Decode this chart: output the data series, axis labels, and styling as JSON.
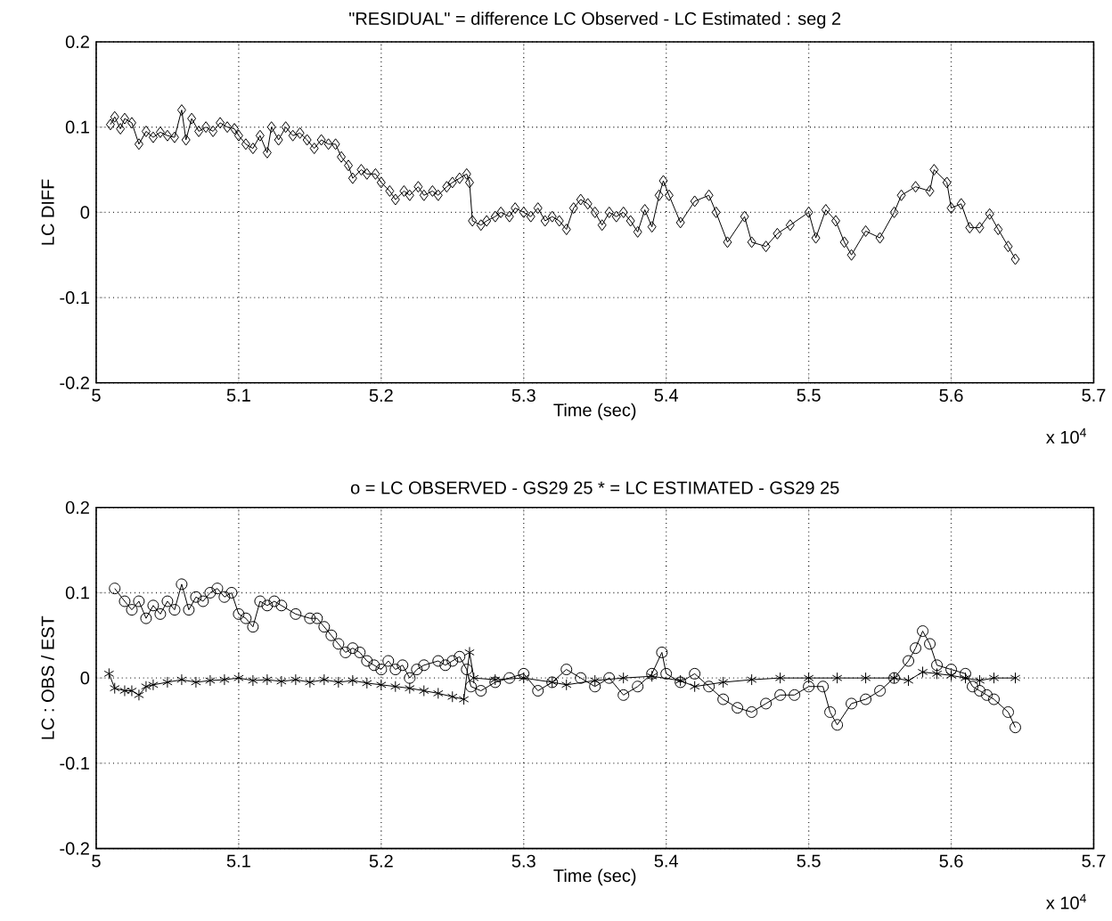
{
  "chart_data": [
    {
      "type": "line",
      "title": "\"RESIDUAL\" = difference  LC Observed - LC Estimated        : seg 2",
      "xlabel": "Time (sec)",
      "ylabel": "LC DIFF",
      "annotations": [
        "x 10$^{4}$"
      ],
      "xlim": [
        5,
        5.7
      ],
      "ylim": [
        -0.2,
        0.2
      ],
      "xticks": [
        5,
        5.1,
        5.2,
        5.3,
        5.4,
        5.5,
        5.6,
        5.7
      ],
      "yticks": [
        -0.2,
        -0.1,
        0,
        0.1,
        0.2
      ],
      "grid": true,
      "series": [
        {
          "color": "#000000",
          "marker": "diamond",
          "x": [
            5.01,
            5.013,
            5.017,
            5.02,
            5.025,
            5.03,
            5.035,
            5.04,
            5.045,
            5.05,
            5.055,
            5.06,
            5.063,
            5.067,
            5.072,
            5.077,
            5.082,
            5.087,
            5.092,
            5.097,
            5.1,
            5.105,
            5.11,
            5.115,
            5.12,
            5.123,
            5.128,
            5.133,
            5.138,
            5.143,
            5.148,
            5.153,
            5.158,
            5.163,
            5.168,
            5.172,
            5.177,
            5.18,
            5.186,
            5.19,
            5.196,
            5.2,
            5.206,
            5.21,
            5.216,
            5.22,
            5.226,
            5.23,
            5.236,
            5.24,
            5.246,
            5.25,
            5.255,
            5.26,
            5.262,
            5.264,
            5.27,
            5.274,
            5.28,
            5.284,
            5.29,
            5.294,
            5.3,
            5.305,
            5.31,
            5.315,
            5.32,
            5.325,
            5.33,
            5.335,
            5.34,
            5.345,
            5.35,
            5.355,
            5.36,
            5.365,
            5.37,
            5.375,
            5.38,
            5.385,
            5.39,
            5.395,
            5.398,
            5.402,
            5.41,
            5.42,
            5.43,
            5.435,
            5.443,
            5.455,
            5.46,
            5.47,
            5.478,
            5.487,
            5.5,
            5.505,
            5.512,
            5.519,
            5.525,
            5.53,
            5.54,
            5.55,
            5.56,
            5.565,
            5.575,
            5.585,
            5.588,
            5.597,
            5.6,
            5.607,
            5.613,
            5.62,
            5.627,
            5.633,
            5.64,
            5.645
          ],
          "values": [
            0.103,
            0.112,
            0.098,
            0.11,
            0.105,
            0.08,
            0.095,
            0.088,
            0.094,
            0.09,
            0.088,
            0.12,
            0.085,
            0.11,
            0.095,
            0.1,
            0.095,
            0.105,
            0.1,
            0.098,
            0.09,
            0.08,
            0.075,
            0.09,
            0.07,
            0.1,
            0.085,
            0.1,
            0.09,
            0.093,
            0.085,
            0.075,
            0.085,
            0.08,
            0.08,
            0.065,
            0.055,
            0.04,
            0.05,
            0.045,
            0.045,
            0.035,
            0.025,
            0.015,
            0.025,
            0.02,
            0.03,
            0.02,
            0.025,
            0.02,
            0.03,
            0.035,
            0.04,
            0.045,
            0.035,
            -0.01,
            -0.015,
            -0.01,
            -0.005,
            0.0,
            -0.005,
            0.005,
            0.0,
            -0.005,
            0.005,
            -0.01,
            -0.005,
            -0.01,
            -0.02,
            0.005,
            0.015,
            0.01,
            0.0,
            -0.015,
            0.0,
            -0.005,
            0.0,
            -0.01,
            -0.023,
            0.003,
            -0.017,
            0.02,
            0.037,
            0.02,
            -0.012,
            0.013,
            0.02,
            0.0,
            -0.035,
            -0.005,
            -0.035,
            -0.04,
            -0.025,
            -0.015,
            0.0,
            -0.03,
            0.003,
            -0.01,
            -0.035,
            -0.05,
            -0.022,
            -0.03,
            0.0,
            0.02,
            0.03,
            0.025,
            0.05,
            0.035,
            0.005,
            0.01,
            -0.018,
            -0.018,
            -0.002,
            -0.02,
            -0.04,
            -0.055
          ]
        }
      ]
    },
    {
      "type": "line",
      "title": "o = LC OBSERVED - GS29 25     * = LC ESTIMATED  - GS29 25",
      "xlabel": "Time (sec)",
      "ylabel": "LC : OBS / EST",
      "annotations": [
        "x 10$^{4}$"
      ],
      "xlim": [
        5,
        5.7
      ],
      "ylim": [
        -0.2,
        0.2
      ],
      "xticks": [
        5,
        5.1,
        5.2,
        5.3,
        5.4,
        5.5,
        5.6,
        5.7
      ],
      "yticks": [
        -0.2,
        -0.1,
        0,
        0.1,
        0.2
      ],
      "grid": true,
      "series": [
        {
          "color": "#000000",
          "marker": "circle",
          "x": [
            5.013,
            5.02,
            5.025,
            5.03,
            5.035,
            5.04,
            5.045,
            5.05,
            5.055,
            5.06,
            5.065,
            5.07,
            5.075,
            5.08,
            5.085,
            5.09,
            5.095,
            5.1,
            5.105,
            5.11,
            5.115,
            5.12,
            5.125,
            5.13,
            5.14,
            5.15,
            5.155,
            5.16,
            5.165,
            5.17,
            5.175,
            5.18,
            5.185,
            5.19,
            5.195,
            5.2,
            5.205,
            5.21,
            5.215,
            5.22,
            5.225,
            5.23,
            5.24,
            5.245,
            5.25,
            5.255,
            5.26,
            5.263,
            5.27,
            5.28,
            5.29,
            5.3,
            5.31,
            5.32,
            5.33,
            5.34,
            5.35,
            5.36,
            5.37,
            5.38,
            5.39,
            5.397,
            5.4,
            5.41,
            5.42,
            5.43,
            5.44,
            5.45,
            5.46,
            5.47,
            5.48,
            5.49,
            5.5,
            5.51,
            5.515,
            5.52,
            5.53,
            5.54,
            5.55,
            5.56,
            5.57,
            5.575,
            5.58,
            5.585,
            5.59,
            5.6,
            5.61,
            5.615,
            5.62,
            5.625,
            5.63,
            5.64,
            5.645
          ],
          "values": [
            0.105,
            0.09,
            0.08,
            0.09,
            0.07,
            0.085,
            0.075,
            0.09,
            0.08,
            0.11,
            0.08,
            0.095,
            0.09,
            0.1,
            0.105,
            0.095,
            0.1,
            0.075,
            0.07,
            0.06,
            0.09,
            0.085,
            0.09,
            0.085,
            0.075,
            0.07,
            0.07,
            0.06,
            0.05,
            0.04,
            0.03,
            0.035,
            0.03,
            0.02,
            0.015,
            0.01,
            0.02,
            0.01,
            0.015,
            0.0,
            0.01,
            0.015,
            0.02,
            0.015,
            0.02,
            0.025,
            0.01,
            -0.01,
            -0.015,
            -0.005,
            0.0,
            0.005,
            -0.015,
            -0.005,
            0.01,
            0.0,
            -0.01,
            0.0,
            -0.02,
            -0.01,
            0.005,
            0.03,
            0.005,
            -0.005,
            0.005,
            -0.01,
            -0.025,
            -0.035,
            -0.04,
            -0.03,
            -0.02,
            -0.02,
            -0.01,
            -0.01,
            -0.04,
            -0.055,
            -0.03,
            -0.025,
            -0.015,
            0.0,
            0.02,
            0.035,
            0.055,
            0.04,
            0.015,
            0.01,
            0.005,
            -0.01,
            -0.015,
            -0.02,
            -0.025,
            -0.04,
            -0.058
          ]
        },
        {
          "color": "#000000",
          "marker": "cross",
          "x": [
            5.009,
            5.013,
            5.02,
            5.025,
            5.03,
            5.035,
            5.04,
            5.05,
            5.06,
            5.07,
            5.08,
            5.09,
            5.1,
            5.11,
            5.12,
            5.13,
            5.14,
            5.15,
            5.16,
            5.17,
            5.18,
            5.19,
            5.2,
            5.21,
            5.22,
            5.23,
            5.24,
            5.25,
            5.258,
            5.262,
            5.265,
            5.28,
            5.3,
            5.32,
            5.33,
            5.35,
            5.37,
            5.39,
            5.41,
            5.42,
            5.44,
            5.46,
            5.48,
            5.5,
            5.52,
            5.54,
            5.56,
            5.57,
            5.58,
            5.59,
            5.6,
            5.61,
            5.62,
            5.63,
            5.645
          ],
          "values": [
            0.005,
            -0.012,
            -0.015,
            -0.015,
            -0.02,
            -0.01,
            -0.008,
            -0.005,
            -0.002,
            -0.005,
            -0.003,
            -0.002,
            0.0,
            -0.003,
            -0.002,
            -0.004,
            -0.002,
            -0.005,
            -0.002,
            -0.005,
            -0.003,
            -0.006,
            -0.008,
            -0.01,
            -0.012,
            -0.015,
            -0.018,
            -0.022,
            -0.025,
            0.03,
            0.0,
            -0.002,
            0.0,
            -0.005,
            -0.008,
            -0.003,
            0.0,
            0.002,
            -0.003,
            -0.01,
            -0.005,
            -0.002,
            0.0,
            0.0,
            0.0,
            0.0,
            0.0,
            -0.003,
            0.007,
            0.005,
            0.003,
            0.0,
            -0.003,
            0.0,
            0.0
          ]
        }
      ]
    }
  ]
}
